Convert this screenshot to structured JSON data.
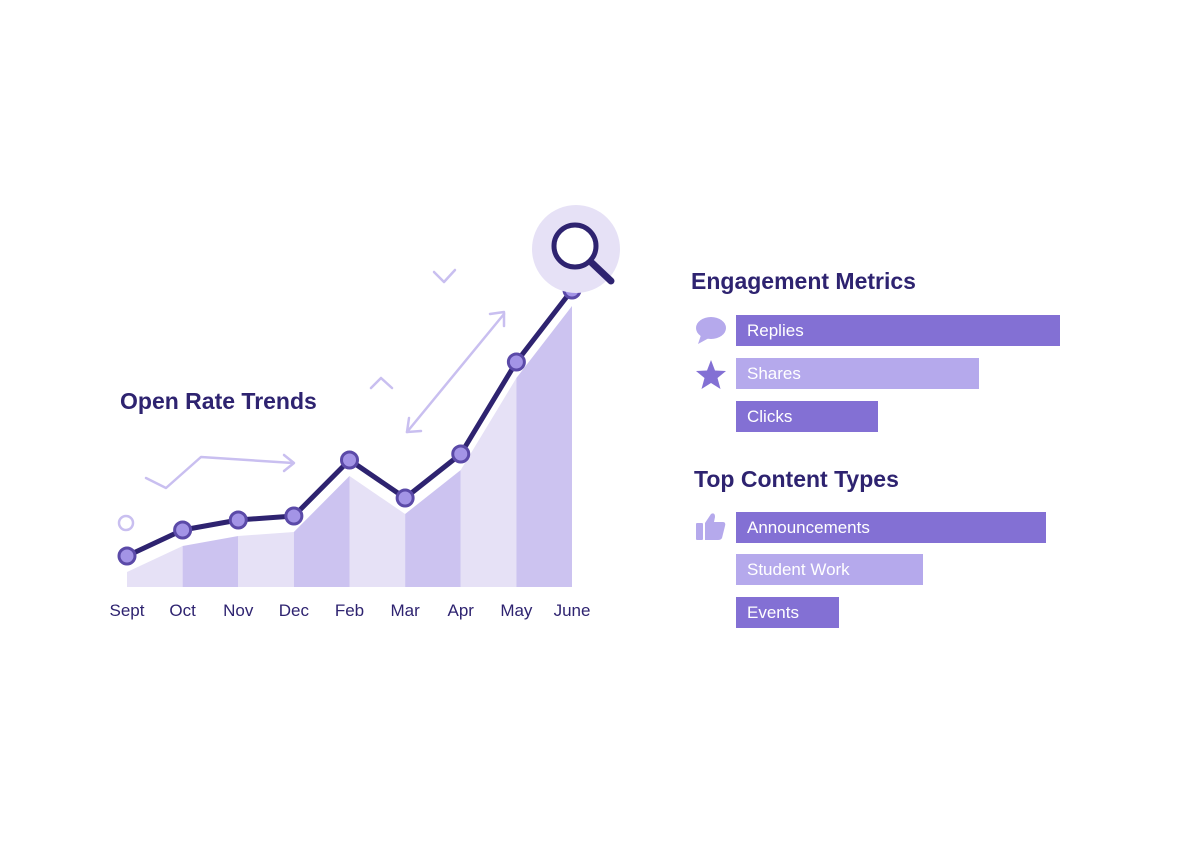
{
  "chart_data": [
    {
      "type": "line",
      "title": "Open Rate Trends",
      "categories": [
        "Sept",
        "Oct",
        "Nov",
        "Dec",
        "Feb",
        "Mar",
        "Apr",
        "May",
        "June"
      ],
      "series": [
        {
          "values": [
            10,
            23,
            28,
            30,
            58,
            39,
            61,
            107,
            143
          ]
        }
      ],
      "ylim": [
        0,
        150
      ],
      "grid": false,
      "colors": {
        "line": "#2e2370",
        "point": "#a394e6",
        "area_light": "#e6e1f6",
        "area_dark": "#ccc3f0"
      }
    },
    {
      "type": "bar",
      "title": "Engagement Metrics",
      "categories": [
        "Replies",
        "Shares",
        "Clicks"
      ],
      "values": [
        100,
        75,
        43
      ],
      "orientation": "horizontal",
      "colors": [
        "#8370d4",
        "#b5a9ec",
        "#8370d4"
      ],
      "icons": [
        "speech-bubble-icon",
        "star-icon"
      ]
    },
    {
      "type": "bar",
      "title": "Top Content Types",
      "categories": [
        "Announcements",
        "Student Work",
        "Events"
      ],
      "values": [
        100,
        60,
        33
      ],
      "orientation": "horizontal",
      "colors": [
        "#8370d4",
        "#b5a9ec",
        "#8370d4"
      ],
      "icons": [
        "thumbs-up-icon"
      ]
    }
  ]
}
